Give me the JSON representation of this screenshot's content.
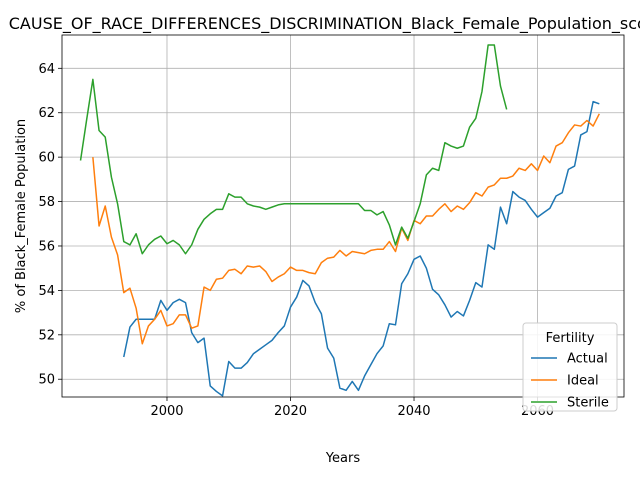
{
  "chart_data": {
    "type": "line",
    "title": "CAUSE_OF_RACE_DIFFERENCES_DISCRIMINATION_Black_Female_Population_scores",
    "xlabel": "Years",
    "ylabel": "% of Black_Female Population",
    "xlim": [
      1983,
      2074
    ],
    "ylim": [
      49.2,
      65.5
    ],
    "xticks": [
      2000,
      2020,
      2040,
      2060
    ],
    "yticks": [
      50,
      52,
      54,
      56,
      58,
      60,
      62,
      64
    ],
    "grid": true,
    "legend": {
      "title": "Fertility",
      "placement": "bottom-right"
    },
    "series": [
      {
        "name": "Actual",
        "color": "#1f77b4",
        "x": [
          1993,
          1994,
          1995,
          1996,
          1997,
          1998,
          1999,
          2000,
          2001,
          2002,
          2003,
          2004,
          2005,
          2006,
          2007,
          2008,
          2009,
          2010,
          2011,
          2012,
          2013,
          2014,
          2015,
          2016,
          2017,
          2018,
          2019,
          2020,
          2021,
          2022,
          2023,
          2024,
          2025,
          2026,
          2027,
          2028,
          2029,
          2030,
          2031,
          2032,
          2033,
          2034,
          2035,
          2036,
          2037,
          2038,
          2039,
          2040,
          2041,
          2042,
          2043,
          2044,
          2045,
          2046,
          2047,
          2048,
          2049,
          2050,
          2051,
          2052,
          2053,
          2054,
          2055,
          2056,
          2057,
          2058,
          2059,
          2060,
          2061,
          2062,
          2063,
          2064,
          2065,
          2066,
          2067,
          2068,
          2069,
          2070
        ],
        "y": [
          51.0,
          52.35,
          52.7,
          52.7,
          52.7,
          52.7,
          53.55,
          53.1,
          53.45,
          53.6,
          53.45,
          52.1,
          51.65,
          51.85,
          49.7,
          49.45,
          49.25,
          50.8,
          50.5,
          50.5,
          50.75,
          51.15,
          51.35,
          51.55,
          51.75,
          52.1,
          52.4,
          53.25,
          53.7,
          54.45,
          54.2,
          53.45,
          52.95,
          51.4,
          50.95,
          49.6,
          49.5,
          49.9,
          49.5,
          50.15,
          50.65,
          51.15,
          51.5,
          52.5,
          52.45,
          54.3,
          54.75,
          55.4,
          55.55,
          55.0,
          54.05,
          53.8,
          53.35,
          52.8,
          53.05,
          52.85,
          53.55,
          54.35,
          54.15,
          56.05,
          55.85,
          57.75,
          57.0,
          58.45,
          58.2,
          58.05,
          57.65,
          57.3,
          57.5,
          57.7,
          58.25,
          58.4,
          59.45,
          59.6,
          61.0,
          61.15,
          62.5,
          62.4
        ]
      },
      {
        "name": "Ideal",
        "color": "#ff7f0e",
        "x": [
          1988,
          1989,
          1990,
          1991,
          1992,
          1993,
          1994,
          1995,
          1996,
          1997,
          1998,
          1999,
          2000,
          2001,
          2002,
          2003,
          2004,
          2005,
          2006,
          2007,
          2008,
          2009,
          2010,
          2011,
          2012,
          2013,
          2014,
          2015,
          2016,
          2017,
          2018,
          2019,
          2020,
          2021,
          2022,
          2023,
          2024,
          2025,
          2026,
          2027,
          2028,
          2029,
          2030,
          2031,
          2032,
          2033,
          2034,
          2035,
          2036,
          2037,
          2038,
          2039,
          2040,
          2041,
          2042,
          2043,
          2044,
          2045,
          2046,
          2047,
          2048,
          2049,
          2050,
          2051,
          2052,
          2053,
          2054,
          2055,
          2056,
          2057,
          2058,
          2059,
          2060,
          2061,
          2062,
          2063,
          2064,
          2065,
          2066,
          2067,
          2068,
          2069,
          2070
        ],
        "y": [
          60.0,
          56.9,
          57.8,
          56.4,
          55.6,
          53.9,
          54.1,
          53.2,
          51.6,
          52.4,
          52.7,
          53.1,
          52.4,
          52.5,
          52.9,
          52.9,
          52.3,
          52.4,
          54.15,
          54.0,
          54.5,
          54.55,
          54.9,
          54.95,
          54.75,
          55.1,
          55.05,
          55.1,
          54.85,
          54.4,
          54.6,
          54.75,
          55.05,
          54.9,
          54.9,
          54.8,
          54.75,
          55.25,
          55.45,
          55.5,
          55.8,
          55.55,
          55.75,
          55.7,
          55.65,
          55.8,
          55.85,
          55.85,
          56.2,
          55.75,
          56.8,
          56.25,
          57.15,
          57.0,
          57.35,
          57.35,
          57.65,
          57.9,
          57.55,
          57.8,
          57.65,
          57.95,
          58.4,
          58.25,
          58.65,
          58.75,
          59.05,
          59.05,
          59.15,
          59.5,
          59.4,
          59.7,
          59.4,
          60.05,
          59.75,
          60.5,
          60.65,
          61.1,
          61.45,
          61.4,
          61.65,
          61.4,
          61.95
        ]
      },
      {
        "name": "Sterile",
        "color": "#2ca02c",
        "x": [
          1986,
          1987,
          1988,
          1989,
          1990,
          1991,
          1992,
          1993,
          1994,
          1995,
          1996,
          1997,
          1998,
          1999,
          2000,
          2001,
          2002,
          2003,
          2004,
          2005,
          2006,
          2007,
          2008,
          2009,
          2010,
          2011,
          2012,
          2013,
          2014,
          2015,
          2016,
          2017,
          2018,
          2019,
          2020,
          2021,
          2022,
          2023,
          2024,
          2025,
          2026,
          2027,
          2028,
          2029,
          2030,
          2031,
          2032,
          2033,
          2034,
          2035,
          2036,
          2037,
          2038,
          2039,
          2040,
          2041,
          2042,
          2043,
          2044,
          2045,
          2046,
          2047,
          2048,
          2049,
          2050,
          2051,
          2052,
          2053,
          2054,
          2055
        ],
        "y": [
          59.85,
          61.7,
          63.5,
          61.2,
          60.9,
          59.1,
          57.9,
          56.2,
          56.05,
          56.55,
          55.65,
          56.05,
          56.3,
          56.45,
          56.1,
          56.25,
          56.05,
          55.65,
          56.05,
          56.75,
          57.2,
          57.45,
          57.65,
          57.65,
          58.35,
          58.2,
          58.2,
          57.9,
          57.8,
          57.75,
          57.65,
          57.75,
          57.85,
          57.9,
          57.9,
          57.9,
          57.9,
          57.9,
          57.9,
          57.9,
          57.9,
          57.9,
          57.9,
          57.9,
          57.9,
          57.9,
          57.6,
          57.6,
          57.4,
          57.55,
          56.95,
          56.05,
          56.85,
          56.35,
          57.1,
          57.9,
          59.2,
          59.5,
          59.4,
          60.65,
          60.5,
          60.4,
          60.5,
          61.35,
          61.75,
          62.95,
          65.05,
          65.05,
          63.2,
          62.15
        ]
      }
    ]
  }
}
